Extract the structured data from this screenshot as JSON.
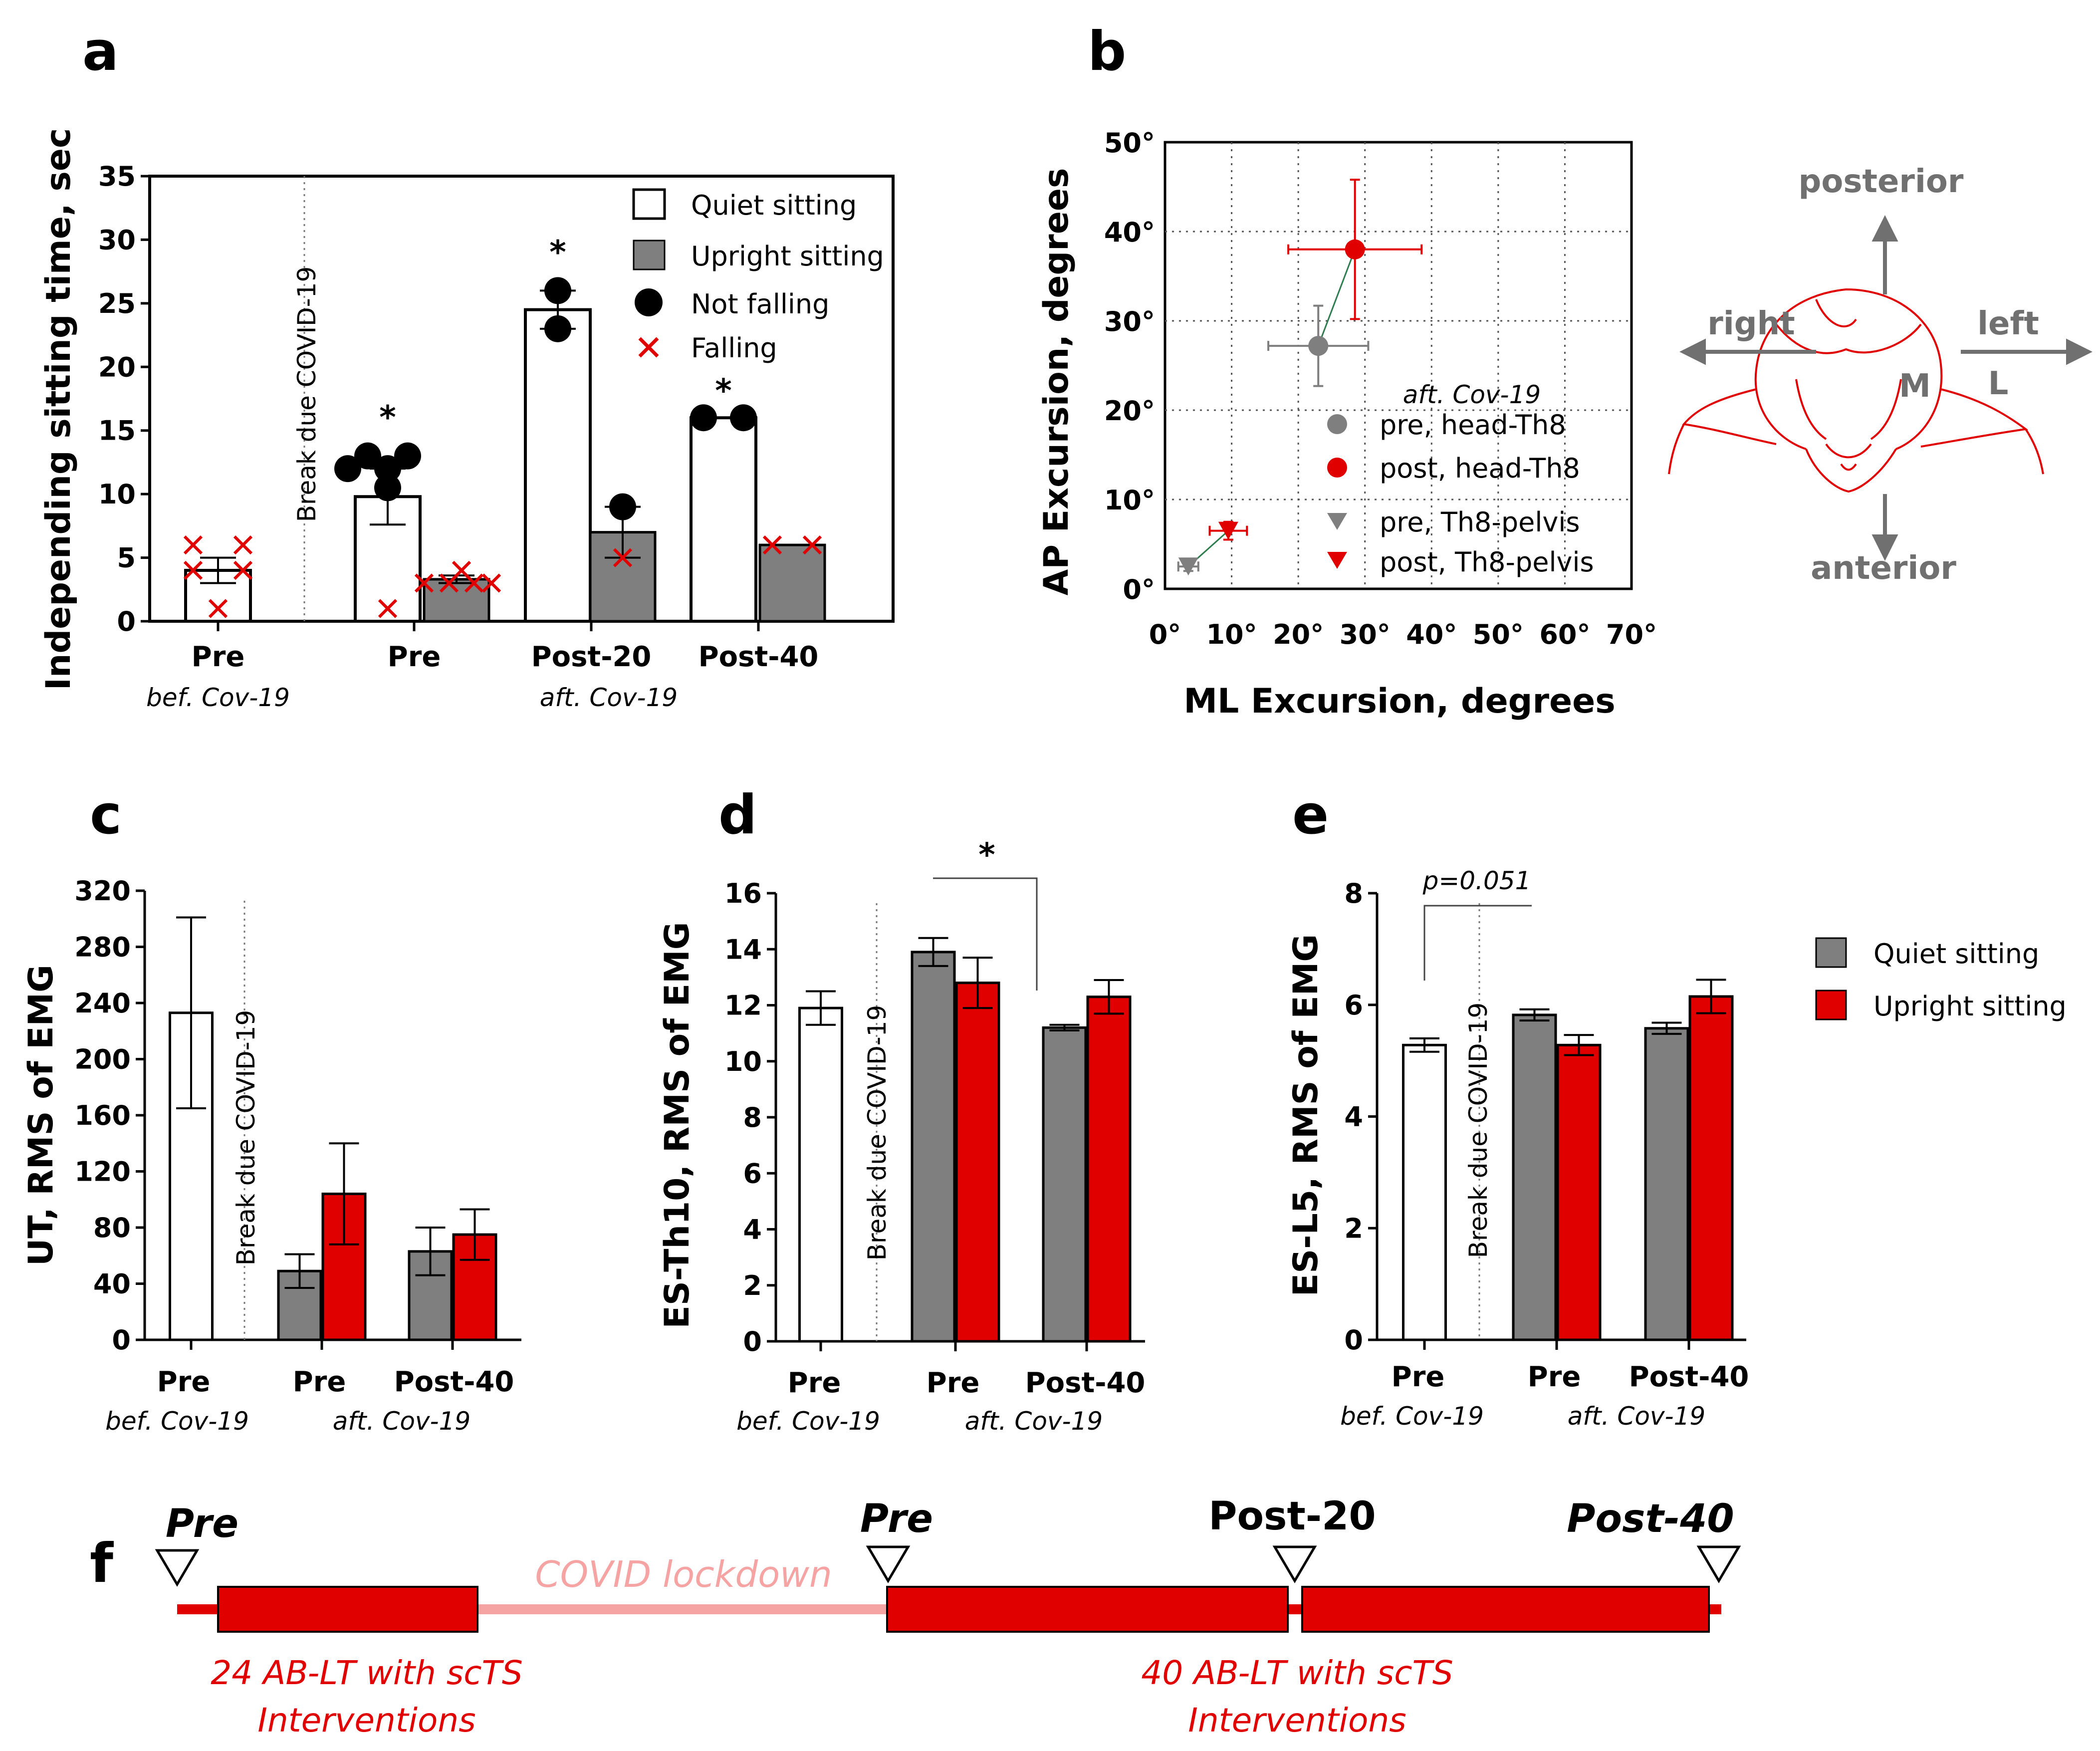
{
  "colors": {
    "red": "#e00000",
    "gray": "#7f7f7f",
    "black": "#000000",
    "light_red": "#f5a3a3",
    "dark_red": "#e00000"
  },
  "panel_labels": [
    "a",
    "b",
    "c",
    "d",
    "e",
    "f"
  ],
  "chart_data": [
    {
      "id": "a",
      "type": "bar",
      "ylabel": "Independing sitting time, sec",
      "yticks": [
        0,
        5,
        10,
        15,
        20,
        25,
        30,
        35
      ],
      "ylim": [
        0,
        35
      ],
      "break_label": "Break due COVID-19",
      "groups": [
        "Pre",
        "Pre",
        "Post-20",
        "Post-40"
      ],
      "period_labels": [
        "bef. Cov-19",
        "aft. Cov-19"
      ],
      "series": [
        {
          "name": "Quiet sitting",
          "values": [
            4.0,
            9.8,
            24.5,
            16.0
          ],
          "errors": [
            1.0,
            2.2,
            1.5,
            0
          ]
        },
        {
          "name": "Upright sitting",
          "values": [
            null,
            3.3,
            7.0,
            6.0
          ],
          "errors": [
            null,
            0.3,
            2.0,
            0
          ]
        }
      ],
      "points": [
        {
          "bar": 0,
          "series": 0,
          "kind": "Falling",
          "values": [
            6,
            6,
            4,
            4,
            1
          ]
        },
        {
          "bar": 1,
          "series": 0,
          "kind": "Not falling",
          "values": [
            13,
            13,
            12,
            10.5,
            12
          ]
        },
        {
          "bar": 1,
          "series": 0,
          "kind": "Falling",
          "values": [
            1
          ]
        },
        {
          "bar": 1,
          "series": 1,
          "kind": "Falling",
          "values": [
            3,
            3,
            4,
            3,
            3
          ]
        },
        {
          "bar": 2,
          "series": 0,
          "kind": "Not falling",
          "values": [
            26,
            23
          ]
        },
        {
          "bar": 2,
          "series": 1,
          "kind": "Not falling",
          "values": [
            9
          ]
        },
        {
          "bar": 2,
          "series": 1,
          "kind": "Falling",
          "values": [
            5
          ]
        },
        {
          "bar": 3,
          "series": 0,
          "kind": "Not falling",
          "values": [
            16,
            16
          ]
        },
        {
          "bar": 3,
          "series": 1,
          "kind": "Falling",
          "values": [
            6,
            6
          ]
        }
      ],
      "significance": [
        "*",
        "*",
        "*"
      ],
      "legend": [
        "Quiet sitting",
        "Upright sitting",
        "Not falling",
        "Falling"
      ]
    },
    {
      "id": "b",
      "type": "scatter",
      "xlabel": "ML Excursion, degrees",
      "ylabel": "AP Excursion, degrees",
      "xticks": [
        "0°",
        "10°",
        "20°",
        "30°",
        "40°",
        "50°",
        "60°",
        "70°"
      ],
      "yticks": [
        "0°",
        "10°",
        "20°",
        "30°",
        "40°",
        "50°"
      ],
      "xlim": [
        0,
        70
      ],
      "ylim": [
        0,
        50
      ],
      "legend_title": "aft. Cov-19",
      "legend": [
        "pre, head-Th8",
        "post, head-Th8",
        "pre, Th8-pelvis",
        "post, Th8-pelvis"
      ],
      "series": [
        {
          "name": "pre, head-Th8",
          "x": 23,
          "y": 27.2,
          "xerr": 7.5,
          "yerr": 4.5,
          "marker": "circle",
          "color": "#7f7f7f"
        },
        {
          "name": "post, head-Th8",
          "x": 28.5,
          "y": 38,
          "xerr": 10,
          "yerr": 7.8,
          "marker": "circle",
          "color": "#e00000"
        },
        {
          "name": "pre, Th8-pelvis",
          "x": 3.5,
          "y": 2.5,
          "xerr": 1.5,
          "yerr": 0.5,
          "marker": "triangle",
          "color": "#7f7f7f"
        },
        {
          "name": "post, Th8-pelvis",
          "x": 9.5,
          "y": 6.5,
          "xerr": 2.8,
          "yerr": 1.0,
          "marker": "triangle",
          "color": "#e00000"
        }
      ]
    },
    {
      "id": "c",
      "type": "bar",
      "ylabel": "UT, RMS of EMG",
      "yticks": [
        0,
        40,
        80,
        120,
        160,
        200,
        240,
        280,
        320
      ],
      "ylim": [
        0,
        320
      ],
      "break_label": "Break due COVID-19",
      "groups": [
        "Pre",
        "Pre",
        "Post-40"
      ],
      "period_labels": [
        "bef. Cov-19",
        "aft. Cov-19"
      ],
      "bars": [
        {
          "group": 0,
          "series": "single",
          "value": 233,
          "error": 68
        },
        {
          "group": 1,
          "series": "Quiet sitting",
          "value": 49,
          "error": 12
        },
        {
          "group": 1,
          "series": "Upright sitting",
          "value": 104,
          "error": 36
        },
        {
          "group": 2,
          "series": "Quiet sitting",
          "value": 63,
          "error": 17
        },
        {
          "group": 2,
          "series": "Upright sitting",
          "value": 75,
          "error": 18
        }
      ]
    },
    {
      "id": "d",
      "type": "bar",
      "ylabel": "ES-Th10, RMS of EMG",
      "yticks": [
        0,
        2,
        4,
        6,
        8,
        10,
        12,
        14,
        16
      ],
      "ylim": [
        0,
        16
      ],
      "break_label": "Break due COVID-19",
      "groups": [
        "Pre",
        "Pre",
        "Post-40"
      ],
      "period_labels": [
        "bef. Cov-19",
        "aft. Cov-19"
      ],
      "significance": "*",
      "bars": [
        {
          "group": 0,
          "series": "single",
          "value": 11.9,
          "error": 0.6
        },
        {
          "group": 1,
          "series": "Quiet sitting",
          "value": 13.9,
          "error": 0.5
        },
        {
          "group": 1,
          "series": "Upright sitting",
          "value": 12.8,
          "error": 0.9
        },
        {
          "group": 2,
          "series": "Quiet sitting",
          "value": 11.2,
          "error": 0.1
        },
        {
          "group": 2,
          "series": "Upright sitting",
          "value": 12.3,
          "error": 0.6
        }
      ]
    },
    {
      "id": "e",
      "type": "bar",
      "ylabel": "ES-L5, RMS of EMG",
      "yticks": [
        0,
        2,
        4,
        6,
        8
      ],
      "ylim": [
        0,
        8
      ],
      "break_label": "Break due COVID-19",
      "groups": [
        "Pre",
        "Pre",
        "Post-40"
      ],
      "period_labels": [
        "bef. Cov-19",
        "aft. Cov-19"
      ],
      "significance": "p=0.051",
      "bars": [
        {
          "group": 0,
          "series": "single",
          "value": 5.28,
          "error": 0.12
        },
        {
          "group": 1,
          "series": "Quiet sitting",
          "value": 5.82,
          "error": 0.1
        },
        {
          "group": 1,
          "series": "Upright sitting",
          "value": 5.28,
          "error": 0.18
        },
        {
          "group": 2,
          "series": "Quiet sitting",
          "value": 5.58,
          "error": 0.1
        },
        {
          "group": 2,
          "series": "Upright sitting",
          "value": 6.15,
          "error": 0.3
        }
      ]
    }
  ],
  "emg_legend": [
    "Quiet sitting",
    "Upright sitting"
  ],
  "head_diagram": {
    "posterior": "posterior",
    "anterior": "anterior",
    "right": "right",
    "left": "left",
    "m": "M",
    "l": "L"
  },
  "timeline": {
    "markers": [
      "Pre",
      "Pre",
      "Post-20",
      "Post-40"
    ],
    "lockdown": "COVID lockdown",
    "block1_line1": "24 AB-LT with scTS",
    "block1_line2": "Interventions",
    "block2_line1": "40 AB-LT with scTS",
    "block2_line2": "Interventions"
  }
}
